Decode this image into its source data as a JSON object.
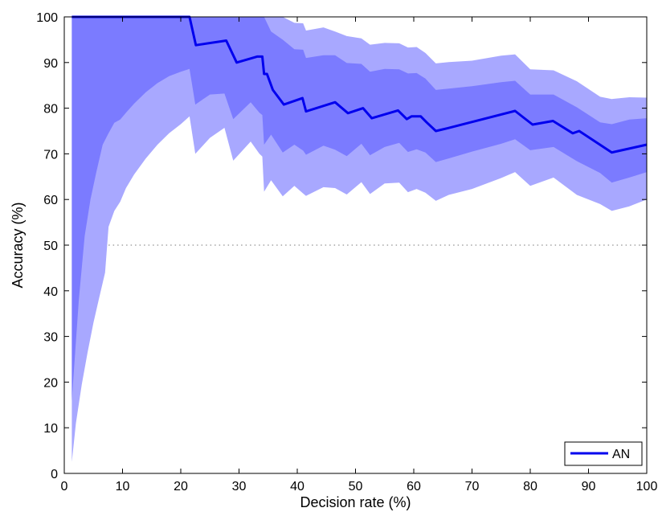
{
  "chart_data": {
    "type": "line",
    "title": "",
    "xlabel": "Decision rate (%)",
    "ylabel": "Accuracy (%)",
    "xlim": [
      0,
      100
    ],
    "ylim": [
      0,
      100
    ],
    "xticks": [
      0,
      10,
      20,
      30,
      40,
      50,
      60,
      70,
      80,
      90,
      100
    ],
    "yticks": [
      0,
      10,
      20,
      30,
      40,
      50,
      60,
      70,
      80,
      90,
      100
    ],
    "grid": false,
    "legend_position": "bottom-right",
    "reference_line": {
      "y": 50,
      "style": "dotted"
    },
    "colors": {
      "line": "#0000ee",
      "band_outer": "#a8a8ff",
      "band_inner": "#7b7bff",
      "reference": "#777777"
    },
    "series": [
      {
        "name": "AN",
        "x": [
          1.3,
          21.5,
          22.6,
          27.8,
          29.6,
          33.1,
          34.0,
          34.3,
          34.8,
          35.8,
          37.7,
          40.9,
          41.5,
          46.5,
          48.7,
          51.3,
          52.8,
          57.3,
          58.8,
          59.6,
          61.2,
          62.2,
          63.8,
          65.8,
          77.4,
          78.8,
          80.4,
          83.9,
          87.3,
          88.4,
          94.0,
          100.0
        ],
        "y": [
          100,
          100,
          93.8,
          94.8,
          90.0,
          91.3,
          91.3,
          87.5,
          87.5,
          84.0,
          80.8,
          82.2,
          79.3,
          81.3,
          78.9,
          80.0,
          77.8,
          79.5,
          77.6,
          78.2,
          78.2,
          76.9,
          75.0,
          75.6,
          79.4,
          78.0,
          76.4,
          77.2,
          74.5,
          75.0,
          70.3,
          72.0
        ]
      }
    ],
    "bands": [
      {
        "level": "outer",
        "x": [
          1.3,
          2.0,
          3.0,
          4.0,
          5.0,
          6.0,
          7.0,
          7.6,
          8.6,
          9.6,
          10.6,
          12.0,
          14.0,
          16.0,
          18.0,
          20.0,
          21.5,
          22.5,
          25.0,
          27.5,
          29.0,
          32.0,
          33.5,
          34.0,
          34.3,
          35.5,
          37.5,
          39.5,
          41.0,
          41.5,
          44.5,
          46.5,
          48.5,
          51.0,
          52.5,
          55.0,
          57.5,
          59.0,
          60.5,
          62.0,
          63.8,
          66.0,
          70.0,
          75.0,
          77.4,
          80.0,
          84.0,
          88.0,
          92.0,
          94.0,
          97.0,
          100.0
        ],
        "upper": [
          100,
          100,
          100,
          100,
          100,
          100,
          100,
          100,
          100,
          100,
          100,
          100,
          100,
          100,
          100,
          100,
          100,
          100,
          100,
          100,
          100,
          100,
          100,
          100,
          100,
          100,
          100,
          98.7,
          98.6,
          97.0,
          97.7,
          96.8,
          95.8,
          95.3,
          93.9,
          94.3,
          94.2,
          93.3,
          93.4,
          92.1,
          89.8,
          90.1,
          90.4,
          91.5,
          91.8,
          88.5,
          88.3,
          85.9,
          82.5,
          82.0,
          82.4,
          82.3
        ],
        "lower": [
          2.5,
          11.0,
          19.5,
          26.5,
          33.0,
          38.5,
          44.0,
          54.0,
          57.5,
          59.5,
          62.5,
          65.5,
          69.0,
          72.0,
          74.5,
          76.5,
          78.2,
          70.0,
          73.5,
          75.7,
          68.5,
          72.7,
          70.0,
          69.4,
          61.7,
          64.2,
          60.7,
          63.0,
          61.3,
          60.8,
          62.7,
          62.5,
          61.1,
          63.8,
          61.2,
          63.5,
          63.7,
          61.6,
          62.3,
          61.5,
          59.7,
          61.0,
          62.3,
          64.7,
          66.0,
          63.0,
          64.8,
          61.0,
          59.0,
          57.5,
          58.5,
          60.0
        ]
      },
      {
        "level": "inner",
        "x": [
          1.3,
          2.5,
          3.5,
          4.5,
          5.5,
          6.6,
          7.6,
          8.6,
          9.6,
          10.6,
          12.0,
          14.0,
          16.0,
          18.0,
          20.0,
          21.5,
          22.5,
          25.0,
          27.5,
          29.0,
          32.0,
          33.5,
          34.0,
          34.3,
          35.5,
          37.5,
          39.5,
          41.0,
          41.5,
          44.5,
          46.5,
          48.5,
          51.0,
          52.5,
          55.0,
          57.5,
          59.0,
          60.5,
          62.0,
          63.8,
          66.0,
          70.0,
          75.0,
          77.4,
          80.0,
          84.0,
          88.0,
          92.0,
          94.0,
          97.0,
          100.0
        ],
        "upper": [
          100,
          100,
          100,
          100,
          100,
          100,
          100,
          100,
          100,
          100,
          100,
          100,
          100,
          100,
          100,
          100,
          100,
          100,
          100,
          100,
          100,
          100,
          100,
          100,
          96.8,
          95.0,
          92.9,
          92.8,
          91.0,
          91.6,
          91.6,
          89.9,
          89.7,
          88.0,
          88.6,
          88.5,
          87.6,
          87.7,
          86.5,
          84.0,
          84.3,
          84.8,
          85.7,
          86.0,
          83.0,
          83.0,
          80.2,
          76.9,
          76.5,
          77.5,
          77.8
        ],
        "lower": [
          16.0,
          38.0,
          52.0,
          60.0,
          66.0,
          72.0,
          74.5,
          76.8,
          77.5,
          79.0,
          81.0,
          83.5,
          85.5,
          87.0,
          88.0,
          88.6,
          80.8,
          83.0,
          83.2,
          77.6,
          81.3,
          79.0,
          78.5,
          72.0,
          74.2,
          70.3,
          72.0,
          70.7,
          69.8,
          71.8,
          70.9,
          69.5,
          72.2,
          69.7,
          71.5,
          72.4,
          70.4,
          71.0,
          70.3,
          68.2,
          69.0,
          70.5,
          72.2,
          73.2,
          70.8,
          71.5,
          68.4,
          65.8,
          63.7,
          64.8,
          66.0
        ]
      }
    ]
  }
}
